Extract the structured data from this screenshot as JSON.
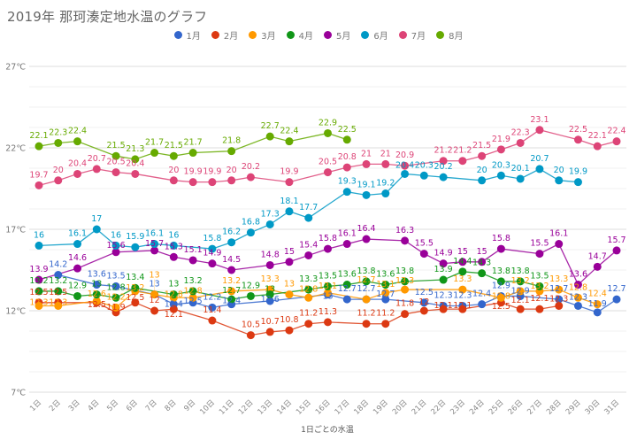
{
  "title": "2019年 那珂湊定地水温のグラフ",
  "chart_data": {
    "type": "line",
    "title": "2019年 那珂湊定地水温のグラフ",
    "xlabel": "1日ごとの水温",
    "ylabel": "",
    "ylim": [
      7,
      27
    ],
    "yticks": [
      "7℃",
      "12℃",
      "17℃",
      "22℃",
      "27℃"
    ],
    "ytick_values": [
      7,
      12,
      17,
      22,
      27
    ],
    "grid": true,
    "legend_position": "top-center",
    "categories": [
      "1日",
      "2日",
      "3日",
      "4日",
      "5日",
      "6日",
      "7日",
      "8日",
      "9日",
      "10日",
      "11日",
      "12日",
      "13日",
      "14日",
      "15日",
      "16日",
      "17日",
      "18日",
      "19日",
      "20日",
      "21日",
      "22日",
      "23日",
      "24日",
      "25日",
      "26日",
      "27日",
      "28日",
      "29日",
      "30日",
      "31日"
    ],
    "series": [
      {
        "name": "1月",
        "color": "#3366cc",
        "values": [
          null,
          14.2,
          null,
          13.6,
          13.5,
          null,
          13,
          12.4,
          12.5,
          12.2,
          12.4,
          null,
          12.6,
          null,
          null,
          13,
          12.7,
          12.7,
          12.7,
          null,
          12.5,
          12.3,
          12.3,
          12.4,
          12.9,
          12.9,
          null,
          12.7,
          12.3,
          11.9,
          12.7
        ]
      },
      {
        "name": "2月",
        "color": "#dc3912",
        "values": [
          12.5,
          12.5,
          null,
          12.5,
          11.9,
          12.5,
          12,
          12.1,
          null,
          11.4,
          null,
          10.5,
          10.7,
          10.8,
          11.2,
          11.3,
          null,
          11.2,
          11.2,
          11.8,
          12,
          12.1,
          12.1,
          null,
          12.5,
          12.1,
          12.1,
          12.3,
          null,
          null,
          null
        ]
      },
      {
        "name": "3月",
        "color": "#ff9900",
        "values": [
          12.3,
          12.3,
          null,
          12.6,
          12.2,
          13.2,
          13,
          12.8,
          12.8,
          null,
          13.2,
          null,
          13.3,
          13,
          12.8,
          13.1,
          null,
          12.7,
          13.1,
          13.3,
          null,
          null,
          13.3,
          null,
          12.8,
          13.2,
          13.2,
          13.3,
          12.8,
          12.4,
          null
        ]
      },
      {
        "name": "4月",
        "color": "#109618",
        "values": [
          13.2,
          13.2,
          12.9,
          13,
          12.8,
          13.4,
          null,
          13,
          13.2,
          null,
          12.7,
          12.9,
          13,
          null,
          13.3,
          13.5,
          13.6,
          13.8,
          13.6,
          13.8,
          null,
          13.9,
          14.4,
          14.3,
          13.8,
          13.8,
          13.5,
          null,
          null,
          null,
          null
        ]
      },
      {
        "name": "5月",
        "color": "#990099",
        "values": [
          13.9,
          null,
          14.6,
          null,
          15.6,
          null,
          15.7,
          15.3,
          15.1,
          14.9,
          14.5,
          null,
          14.8,
          15,
          15.4,
          15.8,
          16.1,
          16.4,
          null,
          16.3,
          15.5,
          14.9,
          15,
          15,
          15.8,
          null,
          15.5,
          16.1,
          13.6,
          14.7,
          15.7
        ]
      },
      {
        "name": "6月",
        "color": "#0099c6",
        "values": [
          16,
          null,
          16.1,
          17,
          16,
          15.9,
          16.1,
          16,
          null,
          15.8,
          16.2,
          16.8,
          17.3,
          18.1,
          17.7,
          null,
          19.3,
          19.1,
          19.2,
          20.4,
          20.3,
          20.2,
          null,
          20,
          20.3,
          20.1,
          20.7,
          20,
          19.9,
          null,
          null
        ]
      },
      {
        "name": "7月",
        "color": "#dd4477",
        "values": [
          19.7,
          20,
          20.4,
          20.7,
          20.5,
          20.4,
          null,
          20,
          19.9,
          19.9,
          20,
          20.2,
          null,
          19.9,
          null,
          20.5,
          20.8,
          21,
          21,
          20.9,
          null,
          21.2,
          21.2,
          21.5,
          21.9,
          22.3,
          23.1,
          null,
          22.5,
          22.1,
          22.4
        ]
      },
      {
        "name": "8月",
        "color": "#66aa00",
        "values": [
          22.1,
          22.3,
          22.4,
          null,
          21.5,
          21.3,
          21.7,
          21.5,
          21.7,
          null,
          21.8,
          null,
          22.7,
          22.4,
          null,
          22.9,
          22.5,
          null,
          null,
          null,
          null,
          null,
          null,
          null,
          null,
          null,
          null,
          null,
          null,
          null,
          null
        ]
      }
    ]
  }
}
